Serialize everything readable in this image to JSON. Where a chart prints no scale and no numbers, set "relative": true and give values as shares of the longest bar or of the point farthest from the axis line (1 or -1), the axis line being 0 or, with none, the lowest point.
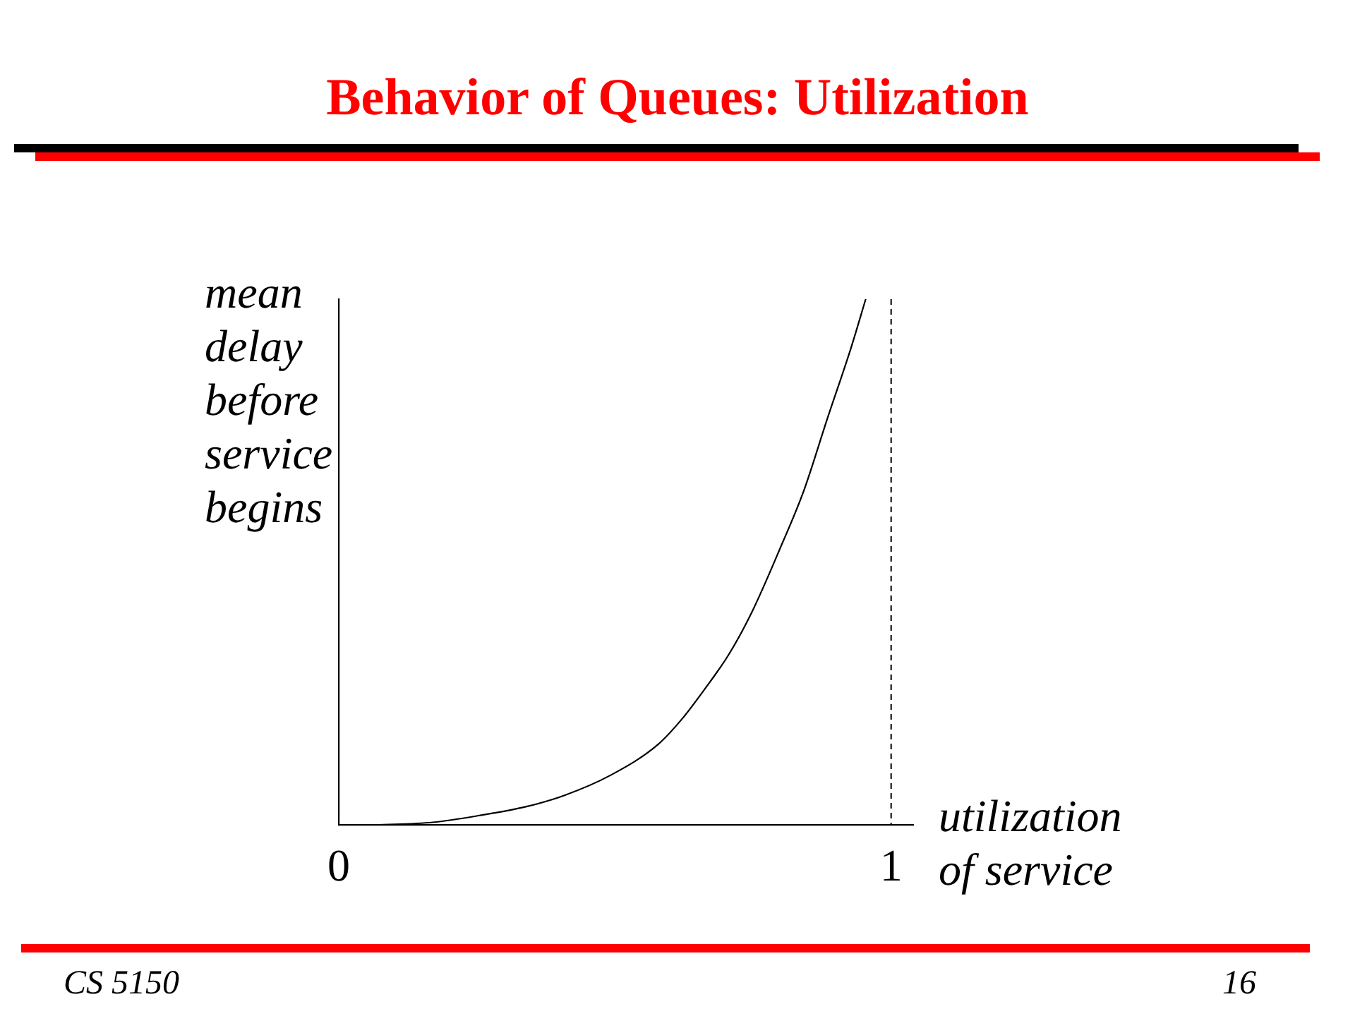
{
  "chart_data": {
    "type": "line",
    "title": "Behavior of Queues: Utilization",
    "xlabel": "utilization of service",
    "ylabel": "mean delay before service begins",
    "annotations": [
      "CS 5150",
      "16"
    ],
    "x": [
      0.066,
      0.17,
      0.255,
      0.34,
      0.408,
      0.493,
      0.578,
      0.621,
      0.663,
      0.706,
      0.748,
      0.799,
      0.842,
      0.884,
      0.927,
      0.954
    ],
    "series": [
      {
        "color": "#000000",
        "values": [
          0,
          0.005,
          0.018,
          0.035,
          0.056,
          0.095,
          0.153,
          0.201,
          0.259,
          0.324,
          0.405,
          0.526,
          0.636,
          0.771,
          0.906,
          1
        ]
      }
    ],
    "relative": true,
    "xlim": [
      0,
      1.04
    ],
    "xticks": [
      0,
      1
    ],
    "ref_lines": [
      {
        "axis": "x",
        "value": 1,
        "color": "#000000",
        "line_style": "dashed"
      }
    ],
    "grid": false,
    "legend": false,
    "marker": "none",
    "line_style": "solid"
  }
}
